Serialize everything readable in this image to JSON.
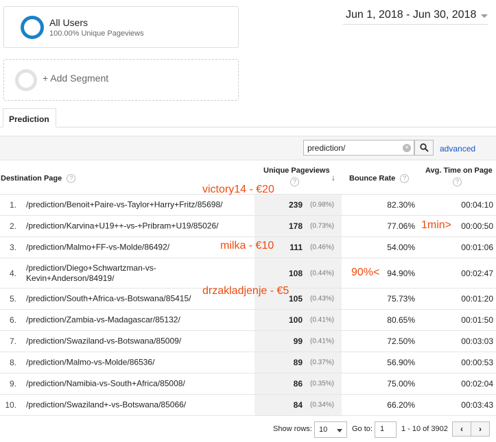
{
  "segments": {
    "all_users": {
      "title": "All Users",
      "subtitle": "100.00% Unique Pageviews"
    },
    "add_label": "+ Add Segment"
  },
  "date_range": "Jun 1, 2018 - Jun 30, 2018",
  "tab": {
    "label": "Prediction"
  },
  "filter": {
    "value": "prediction/",
    "advanced_label": "advanced"
  },
  "headers": {
    "dest_page": "Destination Page",
    "unique_pageviews": "Unique Pageviews",
    "bounce_rate": "Bounce Rate",
    "avg_time": "Avg. Time on Page",
    "help_glyph": "?"
  },
  "rows": [
    {
      "idx": "1.",
      "page": "/prediction/Benoit+Paire-vs-Taylor+Harry+Fritz/85698/",
      "pv": "239",
      "pct": "(0.98%)",
      "bounce": "82.30%",
      "time": "00:04:10"
    },
    {
      "idx": "2.",
      "page": "/prediction/Karvina+U19++-vs-+Pribram+U19/85026/",
      "pv": "178",
      "pct": "(0.73%)",
      "bounce": "77.06%",
      "time": "00:00:50"
    },
    {
      "idx": "3.",
      "page": "/prediction/Malmo+FF-vs-Molde/86492/",
      "pv": "111",
      "pct": "(0.46%)",
      "bounce": "54.00%",
      "time": "00:01:06"
    },
    {
      "idx": "4.",
      "page": "/prediction/Diego+Schwartzman-vs-Kevin+Anderson/84919/",
      "pv": "108",
      "pct": "(0.44%)",
      "bounce": "94.90%",
      "time": "00:02:47"
    },
    {
      "idx": "5.",
      "page": "/prediction/South+Africa-vs-Botswana/85415/",
      "pv": "105",
      "pct": "(0.43%)",
      "bounce": "75.73%",
      "time": "00:01:20"
    },
    {
      "idx": "6.",
      "page": "/prediction/Zambia-vs-Madagascar/85132/",
      "pv": "100",
      "pct": "(0.41%)",
      "bounce": "80.65%",
      "time": "00:01:50"
    },
    {
      "idx": "7.",
      "page": "/prediction/Swaziland-vs-Botswana/85009/",
      "pv": "99",
      "pct": "(0.41%)",
      "bounce": "72.50%",
      "time": "00:03:03"
    },
    {
      "idx": "8.",
      "page": "/prediction/Malmo-vs-Molde/86536/",
      "pv": "89",
      "pct": "(0.37%)",
      "bounce": "56.90%",
      "time": "00:00:53"
    },
    {
      "idx": "9.",
      "page": "/prediction/Namibia-vs-South+Africa/85008/",
      "pv": "86",
      "pct": "(0.35%)",
      "bounce": "75.00%",
      "time": "00:02:04"
    },
    {
      "idx": "10.",
      "page": "/prediction/Swaziland+-vs-Botswana/85066/",
      "pv": "84",
      "pct": "(0.34%)",
      "bounce": "66.20%",
      "time": "00:03:43"
    }
  ],
  "annotations": {
    "a1": "victory14 - €20",
    "a2": "1min>",
    "a3": "milka - €10",
    "a4": "90%<",
    "a5": "drzakladjenje - €5"
  },
  "pagination": {
    "show_rows_label": "Show rows:",
    "rows_value": "10",
    "goto_label": "Go to:",
    "goto_value": "1",
    "range_text": "1 - 10 of 3902",
    "prev_glyph": "‹",
    "next_glyph": "›"
  },
  "colors": {
    "accent": "#1a82c7",
    "annotation": "#f04a0d",
    "link": "#1155cc"
  }
}
